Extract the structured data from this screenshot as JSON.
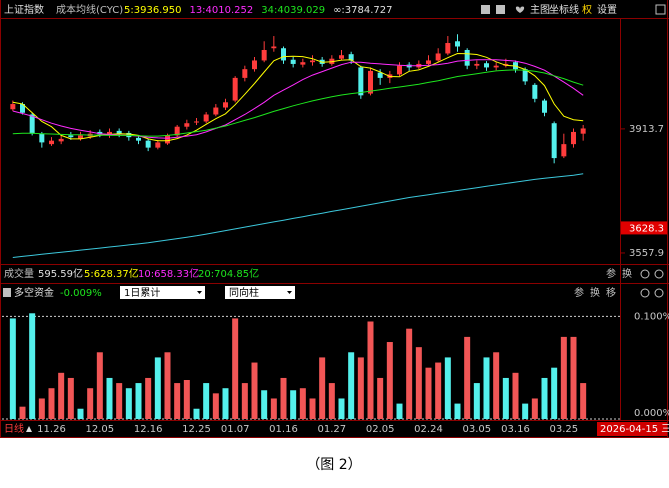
{
  "header_tools": [
    "主图",
    "坐标线",
    "权",
    "设置"
  ],
  "volume_panel": {
    "title": "成交量",
    "total": "595.59亿",
    "averages": [
      "5:628.37亿",
      "10:658.33亿",
      "20:704.85亿"
    ],
    "tools": [
      "参",
      "换"
    ]
  },
  "fund_panel_controls": {
    "period": "1日累计",
    "mode": "同向柱",
    "tools": [
      "参",
      "换",
      "移"
    ]
  },
  "x_axis_bar": {
    "label": "日线",
    "date": "2026-04-15 三"
  },
  "caption": "（图 2）",
  "chart_data": [
    {
      "type": "candlestick",
      "title": "上证指数",
      "subtitle": "成本均线(CYC)",
      "up_color": "#ff3c3c",
      "down_color": "#54f0ec",
      "open": [
        3970,
        3985,
        3955,
        3900,
        3870,
        3878,
        3895,
        3885,
        3892,
        3905,
        3895,
        3908,
        3902,
        3888,
        3880,
        3860,
        3872,
        3895,
        3920,
        3932,
        3935,
        3955,
        3975,
        3995,
        4060,
        4085,
        4110,
        4145,
        4145,
        4112,
        4098,
        4105,
        4112,
        4100,
        4115,
        4128,
        4090,
        4015,
        4075,
        4060,
        4070,
        4098,
        4090,
        4100,
        4110,
        4130,
        4165,
        4140,
        4095,
        4102,
        4090,
        4095,
        4105,
        4085,
        4040,
        3995,
        3930,
        3835,
        3870,
        3900
      ],
      "high": [
        3995,
        3990,
        3960,
        3905,
        3890,
        3895,
        3905,
        3905,
        3910,
        3912,
        3915,
        3915,
        3908,
        3895,
        3885,
        3882,
        3900,
        3925,
        3940,
        3945,
        3962,
        3985,
        4000,
        4065,
        4095,
        4120,
        4165,
        4180,
        4150,
        4120,
        4115,
        4125,
        4120,
        4125,
        4140,
        4135,
        4095,
        4090,
        4085,
        4080,
        4105,
        4105,
        4110,
        4125,
        4145,
        4180,
        4185,
        4145,
        4110,
        4108,
        4105,
        4115,
        4110,
        4090,
        4045,
        4000,
        3935,
        3900,
        3915,
        3925
      ],
      "low": [
        3965,
        3955,
        3895,
        3860,
        3865,
        3870,
        3882,
        3880,
        3885,
        3890,
        3888,
        3890,
        3880,
        3870,
        3850,
        3855,
        3868,
        3890,
        3912,
        3925,
        3930,
        3950,
        3968,
        3990,
        4050,
        4078,
        4105,
        4135,
        4100,
        4090,
        4090,
        4095,
        4092,
        4095,
        4110,
        4100,
        4000,
        4010,
        4040,
        4045,
        4065,
        4080,
        4085,
        4095,
        4105,
        4125,
        4135,
        4085,
        4085,
        4080,
        4082,
        4090,
        4075,
        4040,
        3990,
        3950,
        3815,
        3830,
        3860,
        3880
      ],
      "close": [
        3985,
        3960,
        3900,
        3875,
        3880,
        3885,
        3890,
        3895,
        3900,
        3898,
        3905,
        3900,
        3890,
        3880,
        3860,
        3875,
        3895,
        3920,
        3930,
        3935,
        3955,
        3975,
        3990,
        4060,
        4085,
        4110,
        4140,
        4150,
        4110,
        4100,
        4105,
        4110,
        4100,
        4115,
        4125,
        4110,
        4010,
        4080,
        4060,
        4070,
        4095,
        4090,
        4100,
        4110,
        4130,
        4160,
        4150,
        4095,
        4100,
        4090,
        4095,
        4100,
        4085,
        4050,
        4000,
        3960,
        3830,
        3870,
        3905,
        3915
      ],
      "series": [
        {
          "name": "5:3936.950",
          "color": "#ffff00",
          "values": [
            3990,
            3985,
            3960,
            3935,
            3920,
            3895,
            3885,
            3885,
            3890,
            3895,
            3898,
            3900,
            3899,
            3895,
            3885,
            3880,
            3880,
            3886,
            3896,
            3910,
            3927,
            3943,
            3957,
            3983,
            4013,
            4044,
            4077,
            4109,
            4121,
            4122,
            4121,
            4115,
            4105,
            4106,
            4111,
            4112,
            4092,
            4088,
            4077,
            4064,
            4063,
            4079,
            4083,
            4093,
            4105,
            4118,
            4130,
            4129,
            4127,
            4119,
            4106,
            4096,
            4094,
            4084,
            4066,
            4038,
            3985,
            3950,
            3940,
            3937
          ]
        },
        {
          "name": "13:4010.252",
          "color": "#ff2cff",
          "values": [
            3965,
            3958,
            3950,
            3940,
            3930,
            3922,
            3915,
            3910,
            3905,
            3900,
            3898,
            3896,
            3895,
            3893,
            3890,
            3888,
            3887,
            3890,
            3893,
            3897,
            3905,
            3915,
            3925,
            3940,
            3955,
            3972,
            3990,
            4010,
            4025,
            4040,
            4055,
            4068,
            4078,
            4088,
            4098,
            4105,
            4105,
            4102,
            4100,
            4098,
            4096,
            4095,
            4095,
            4096,
            4098,
            4102,
            4108,
            4110,
            4112,
            4112,
            4112,
            4110,
            4108,
            4102,
            4093,
            4082,
            4065,
            4048,
            4030,
            4010
          ]
        },
        {
          "name": "34:4039.029",
          "color": "#1ee61e",
          "values": [
            3900,
            3901,
            3901,
            3900,
            3899,
            3898,
            3897,
            3897,
            3896,
            3896,
            3895,
            3895,
            3895,
            3894,
            3893,
            3893,
            3895,
            3898,
            3902,
            3906,
            3910,
            3916,
            3922,
            3930,
            3938,
            3946,
            3955,
            3964,
            3972,
            3980,
            3987,
            3994,
            4000,
            4006,
            4011,
            4015,
            4018,
            4022,
            4026,
            4030,
            4034,
            4038,
            4042,
            4047,
            4052,
            4058,
            4064,
            4068,
            4072,
            4076,
            4080,
            4082,
            4083,
            4082,
            4079,
            4074,
            4066,
            4058,
            4048,
            4039
          ]
        },
        {
          "name": "∞:3784.727",
          "color": "#3cc8dc",
          "values": [
            3545,
            3548,
            3551,
            3554,
            3557,
            3560,
            3563,
            3566,
            3569,
            3572,
            3575,
            3578,
            3581,
            3584,
            3587,
            3591,
            3595,
            3599,
            3603,
            3607,
            3612,
            3617,
            3622,
            3627,
            3632,
            3637,
            3642,
            3647,
            3652,
            3657,
            3662,
            3667,
            3672,
            3677,
            3682,
            3687,
            3692,
            3697,
            3702,
            3707,
            3712,
            3717,
            3721,
            3725,
            3729,
            3733,
            3737,
            3741,
            3745,
            3749,
            3753,
            3757,
            3761,
            3765,
            3769,
            3772,
            3775,
            3778,
            3781,
            3785
          ]
        }
      ],
      "ylim": [
        3532,
        4226
      ],
      "yticks": [
        3557.9,
        3913.7
      ],
      "marker_value": 3628.3
    },
    {
      "type": "bar",
      "title": "多空资金",
      "subtitle": "-0.009%",
      "categories": [
        null,
        null,
        null,
        null,
        "11.26",
        null,
        null,
        null,
        null,
        "12.05",
        null,
        null,
        null,
        null,
        "12.16",
        null,
        null,
        null,
        null,
        "12.25",
        null,
        null,
        null,
        "01.07",
        null,
        null,
        null,
        null,
        "01.16",
        null,
        null,
        null,
        null,
        "01.27",
        null,
        null,
        null,
        null,
        "02.05",
        null,
        null,
        null,
        null,
        "02.24",
        null,
        null,
        null,
        null,
        "03.05",
        null,
        null,
        null,
        "03.16",
        null,
        null,
        null,
        null,
        "03.25",
        null,
        null
      ],
      "values": [
        0.098,
        0.012,
        0.103,
        0.02,
        0.03,
        0.045,
        0.04,
        0.01,
        0.03,
        0.065,
        0.04,
        0.035,
        0.03,
        0.035,
        0.04,
        0.06,
        0.065,
        0.035,
        0.038,
        0.01,
        0.035,
        0.025,
        0.03,
        0.098,
        0.035,
        0.055,
        0.028,
        0.02,
        0.04,
        0.028,
        0.03,
        0.02,
        0.06,
        0.035,
        0.02,
        0.065,
        0.06,
        0.095,
        0.04,
        0.075,
        0.015,
        0.088,
        0.07,
        0.05,
        0.055,
        0.06,
        0.015,
        0.08,
        0.035,
        0.06,
        0.065,
        0.04,
        0.045,
        0.015,
        0.02,
        0.04,
        0.05,
        0.08,
        0.08,
        0.035
      ],
      "colors": [
        "#54f0ec",
        "#f25656",
        "#54f0ec",
        "#f25656",
        "#f25656",
        "#f25656",
        "#f25656",
        "#54f0ec",
        "#f25656",
        "#f25656",
        "#54f0ec",
        "#f25656",
        "#54f0ec",
        "#54f0ec",
        "#f25656",
        "#54f0ec",
        "#f25656",
        "#f25656",
        "#f25656",
        "#54f0ec",
        "#54f0ec",
        "#f25656",
        "#54f0ec",
        "#f25656",
        "#f25656",
        "#f25656",
        "#54f0ec",
        "#f25656",
        "#f25656",
        "#54f0ec",
        "#f25656",
        "#f25656",
        "#f25656",
        "#f25656",
        "#54f0ec",
        "#54f0ec",
        "#f25656",
        "#f25656",
        "#f25656",
        "#f25656",
        "#54f0ec",
        "#f25656",
        "#f25656",
        "#f25656",
        "#f25656",
        "#54f0ec",
        "#54f0ec",
        "#f25656",
        "#54f0ec",
        "#54f0ec",
        "#f25656",
        "#54f0ec",
        "#f25656",
        "#54f0ec",
        "#f25656",
        "#54f0ec",
        "#54f0ec",
        "#f25656",
        "#f25656",
        "#f25656"
      ],
      "ylim": [
        0,
        0.114
      ],
      "yticks": [
        {
          "value": 0.1,
          "label": "0.100%"
        },
        {
          "value": 0,
          "label": "0.000%"
        }
      ],
      "grid": true
    }
  ]
}
